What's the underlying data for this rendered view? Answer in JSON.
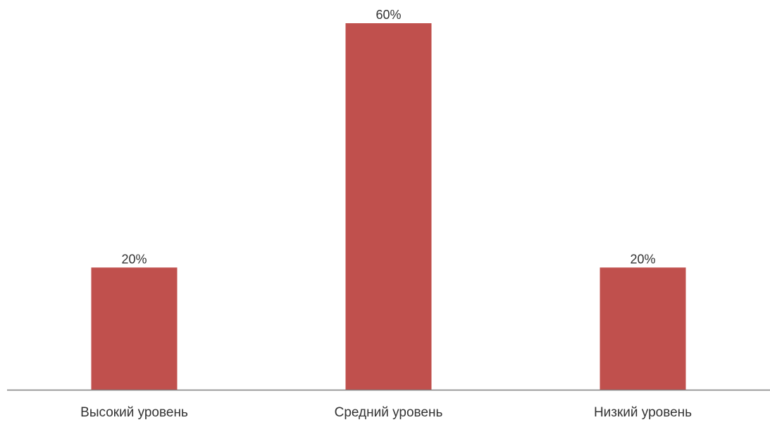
{
  "chart_data": {
    "type": "bar",
    "categories": [
      "Высокий уровень",
      "Средний уровень",
      "Низкий уровень"
    ],
    "values": [
      20,
      60,
      20
    ],
    "data_labels": [
      "20%",
      "60%",
      "20%"
    ],
    "title": "",
    "xlabel": "",
    "ylabel": "",
    "ylim": [
      0,
      60
    ],
    "grid": false,
    "legend": "none",
    "colors": {
      "bar": "#c0504d",
      "axis": "#808080",
      "text": "#333333"
    }
  }
}
